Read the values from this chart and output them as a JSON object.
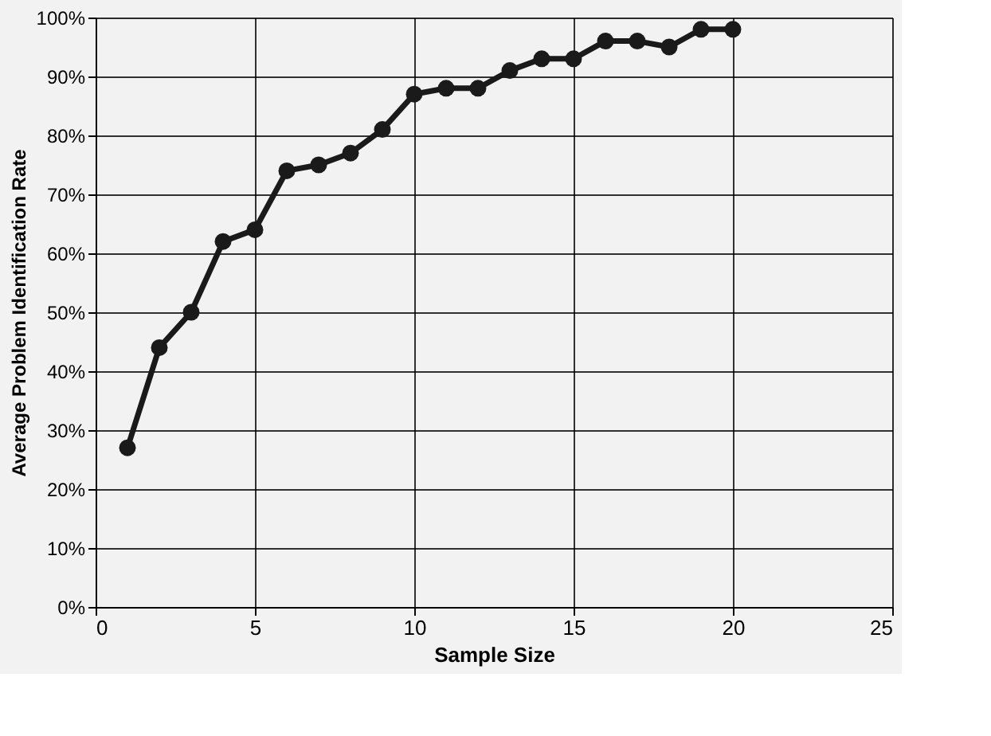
{
  "chart_data": {
    "type": "line",
    "x": [
      1,
      2,
      3,
      4,
      5,
      6,
      7,
      8,
      9,
      10,
      11,
      12,
      13,
      14,
      15,
      16,
      17,
      18,
      19,
      20
    ],
    "series": [
      {
        "color": "#1a1a1a",
        "values": [
          27,
          44,
          50,
          62,
          64,
          74,
          75,
          77,
          81,
          87,
          88,
          88,
          91,
          93,
          93,
          96,
          96,
          95,
          98,
          98
        ]
      }
    ],
    "xlabel": "Sample Size",
    "ylabel": "Average Problem  Identification Rate",
    "xlim": [
      0,
      25
    ],
    "xticks": [
      0,
      5,
      10,
      15,
      20,
      25
    ],
    "ylim": [
      0,
      100
    ],
    "yticks": [
      {
        "value": 0,
        "label": "0%"
      },
      {
        "value": 10,
        "label": "10%"
      },
      {
        "value": 20,
        "label": "20%"
      },
      {
        "value": 30,
        "label": "30%"
      },
      {
        "value": 40,
        "label": "40%"
      },
      {
        "value": 50,
        "label": "50%"
      },
      {
        "value": 60,
        "label": "60%"
      },
      {
        "value": 70,
        "label": "70%"
      },
      {
        "value": 80,
        "label": "80%"
      },
      {
        "value": 90,
        "label": "90%"
      },
      {
        "value": 100,
        "label": "100%"
      }
    ],
    "grid": true,
    "marker": "circle",
    "line_style": "solid"
  }
}
